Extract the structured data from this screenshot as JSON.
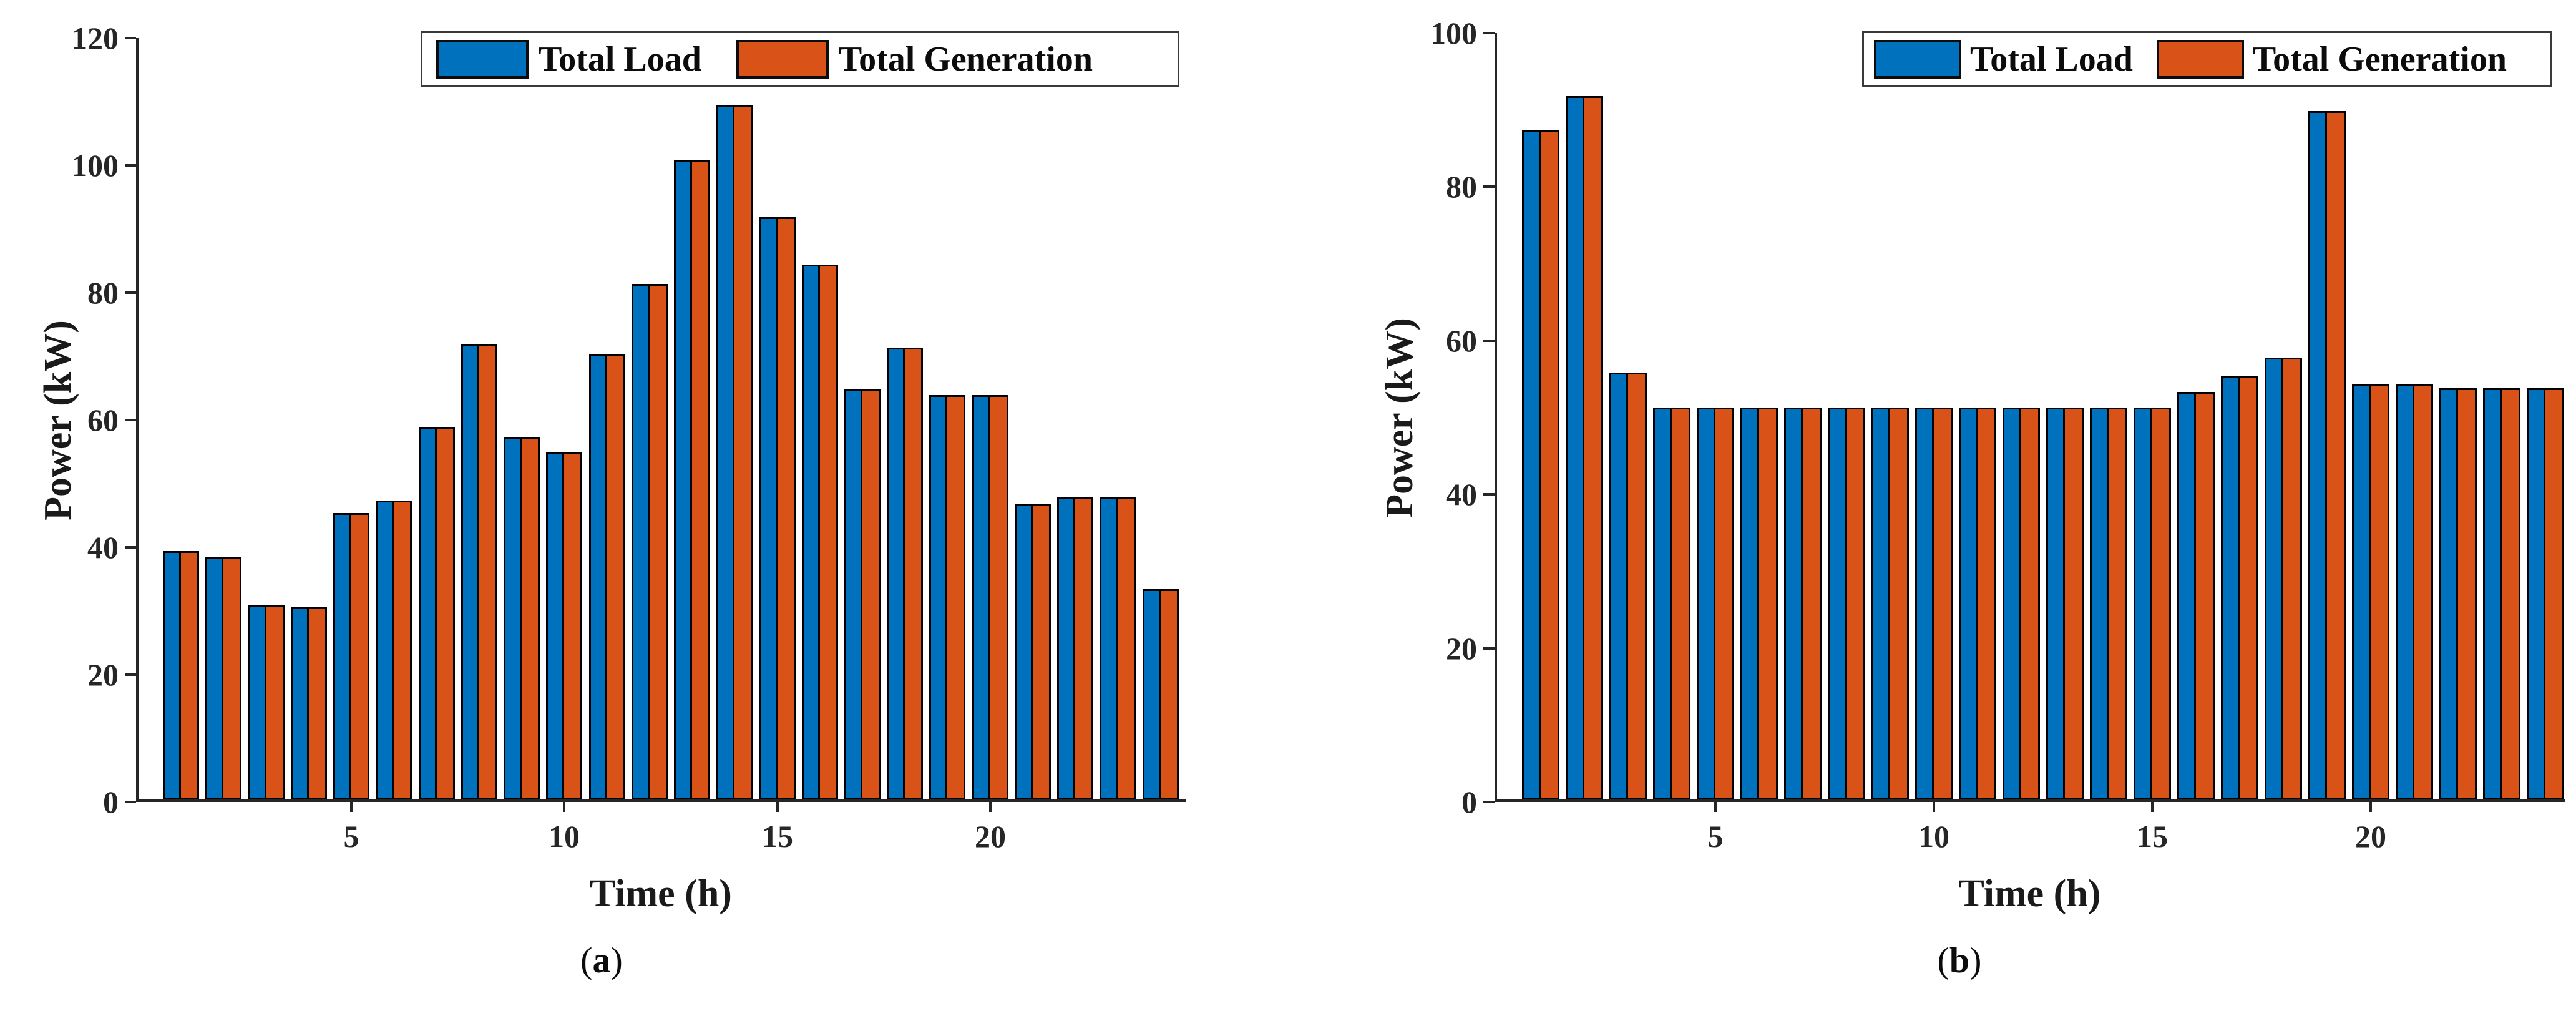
{
  "figure": {
    "background": "#ffffff",
    "axis_color": "#262626",
    "bar_edge_color": "#000000",
    "legend_labels": [
      "Total Load",
      "Total Generation"
    ]
  },
  "chart_data": [
    {
      "type": "bar",
      "panel": "a",
      "caption": {
        "open": "(",
        "letter": "a",
        "close": ")"
      },
      "xlabel": "Time (h)",
      "ylabel": "Power (kW)",
      "xlim": [
        0,
        24.65
      ],
      "ylim": [
        0,
        120
      ],
      "yticks": [
        0,
        20,
        40,
        60,
        80,
        100,
        120
      ],
      "xticks": [
        5,
        10,
        15,
        20
      ],
      "grid": false,
      "legend_position": "inside-top-right",
      "categories": [
        1,
        2,
        3,
        4,
        5,
        6,
        7,
        8,
        9,
        10,
        11,
        12,
        13,
        14,
        15,
        16,
        17,
        18,
        19,
        20,
        21,
        22,
        23,
        24
      ],
      "series": [
        {
          "name": "Total Load",
          "color": "#0072BD",
          "values": [
            39,
            38,
            30.6,
            30.2,
            45,
            47,
            58.5,
            71.5,
            57,
            54.5,
            70,
            81,
            100.5,
            109,
            91.5,
            84,
            64.5,
            71,
            63.5,
            63.5,
            46.5,
            47.5,
            47.5,
            33
          ]
        },
        {
          "name": "Total Generation",
          "color": "#D95319",
          "values": [
            39,
            38,
            30.6,
            30.2,
            45,
            47,
            58.5,
            71.5,
            57,
            54.5,
            70,
            81,
            100.5,
            109,
            91.5,
            84,
            64.5,
            71,
            63.5,
            63.5,
            46.5,
            47.5,
            47.5,
            33
          ]
        }
      ]
    },
    {
      "type": "bar",
      "panel": "b",
      "caption": {
        "open": "(",
        "letter": "b",
        "close": ")"
      },
      "xlabel": "Time (h)",
      "ylabel": "Power (kW)",
      "xlim": [
        0,
        24.5
      ],
      "ylim": [
        0,
        100
      ],
      "yticks": [
        0,
        20,
        40,
        60,
        80,
        100
      ],
      "xticks": [
        5,
        10,
        15,
        20
      ],
      "grid": false,
      "legend_position": "inside-top-right",
      "categories": [
        1,
        2,
        3,
        4,
        5,
        6,
        7,
        8,
        9,
        10,
        11,
        12,
        13,
        14,
        15,
        16,
        17,
        18,
        19,
        20,
        21,
        22,
        23,
        24
      ],
      "series": [
        {
          "name": "Total Load",
          "color": "#0072BD",
          "values": [
            87,
            91.5,
            55.5,
            51,
            51,
            51,
            51,
            51,
            51,
            51,
            51,
            51,
            51,
            51,
            51,
            53,
            55,
            57.5,
            89.5,
            54,
            54,
            53.5,
            53.5,
            53.5
          ]
        },
        {
          "name": "Total Generation",
          "color": "#D95319",
          "values": [
            87,
            91.5,
            55.5,
            51,
            51,
            51,
            51,
            51,
            51,
            51,
            51,
            51,
            51,
            51,
            51,
            53,
            55,
            57.5,
            89.5,
            54,
            54,
            53.5,
            53.5,
            53.5
          ]
        }
      ]
    }
  ]
}
